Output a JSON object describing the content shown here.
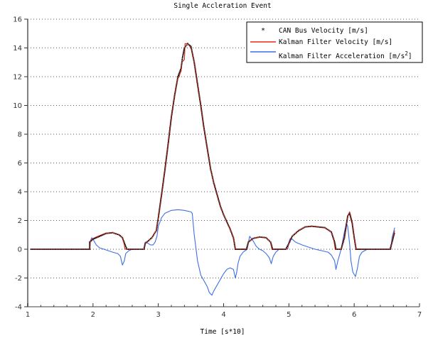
{
  "chart_data": {
    "type": "line",
    "title": "Single Accleration Event",
    "xlabel": "Time [s*10]",
    "ylabel": "",
    "xlim": [
      1,
      7
    ],
    "ylim": [
      -4,
      16
    ],
    "xticks": [
      1,
      2,
      3,
      4,
      5,
      6,
      7
    ],
    "yticks": [
      -4,
      -2,
      0,
      2,
      4,
      6,
      8,
      10,
      12,
      14,
      16
    ],
    "grid": true,
    "grid_style": "dotted horizontal",
    "legend_position": "upper right",
    "colors": {
      "can_bus": "#000000",
      "kalman_velocity": "#e8281c",
      "kalman_accel": "#3d6ee8",
      "axis": "#7f7f7f",
      "grid": "#555555"
    },
    "series": [
      {
        "name": "CAN Bus Velocity [m/s]",
        "style": "markers",
        "marker": "*",
        "color": "#000000",
        "points": [
          [
            1.05,
            0
          ],
          [
            1.2,
            0
          ],
          [
            1.4,
            0
          ],
          [
            1.6,
            0
          ],
          [
            1.8,
            0
          ],
          [
            1.95,
            0
          ],
          [
            1.95,
            0.5
          ],
          [
            2.0,
            0.7
          ],
          [
            2.1,
            0.9
          ],
          [
            2.2,
            1.1
          ],
          [
            2.3,
            1.15
          ],
          [
            2.4,
            1.0
          ],
          [
            2.45,
            0.8
          ],
          [
            2.5,
            0.2
          ],
          [
            2.52,
            0
          ],
          [
            2.6,
            0
          ],
          [
            2.7,
            0
          ],
          [
            2.78,
            0
          ],
          [
            2.8,
            0.4
          ],
          [
            2.9,
            0.8
          ],
          [
            2.97,
            1.3
          ],
          [
            3.0,
            2.2
          ],
          [
            3.05,
            3.8
          ],
          [
            3.1,
            5.5
          ],
          [
            3.15,
            7.3
          ],
          [
            3.2,
            9.2
          ],
          [
            3.25,
            10.7
          ],
          [
            3.3,
            12.0
          ],
          [
            3.35,
            12.6
          ],
          [
            3.37,
            13.3
          ],
          [
            3.4,
            14.0
          ],
          [
            3.45,
            14.3
          ],
          [
            3.5,
            14.1
          ],
          [
            3.55,
            13.0
          ],
          [
            3.6,
            11.5
          ],
          [
            3.65,
            10.0
          ],
          [
            3.7,
            8.4
          ],
          [
            3.75,
            7.0
          ],
          [
            3.8,
            5.6
          ],
          [
            3.85,
            4.6
          ],
          [
            3.9,
            3.8
          ],
          [
            3.95,
            3.0
          ],
          [
            4.0,
            2.4
          ],
          [
            4.05,
            1.9
          ],
          [
            4.1,
            1.4
          ],
          [
            4.15,
            0.8
          ],
          [
            4.18,
            0
          ],
          [
            4.25,
            0
          ],
          [
            4.35,
            0
          ],
          [
            4.38,
            0.5
          ],
          [
            4.45,
            0.75
          ],
          [
            4.55,
            0.85
          ],
          [
            4.65,
            0.8
          ],
          [
            4.72,
            0.5
          ],
          [
            4.75,
            0
          ],
          [
            4.85,
            0
          ],
          [
            4.95,
            0
          ],
          [
            5.0,
            0.4
          ],
          [
            5.05,
            0.9
          ],
          [
            5.15,
            1.3
          ],
          [
            5.25,
            1.55
          ],
          [
            5.35,
            1.6
          ],
          [
            5.45,
            1.55
          ],
          [
            5.55,
            1.5
          ],
          [
            5.65,
            1.2
          ],
          [
            5.7,
            0.5
          ],
          [
            5.72,
            0
          ],
          [
            5.8,
            0
          ],
          [
            5.85,
            0.8
          ],
          [
            5.9,
            2.3
          ],
          [
            5.93,
            2.5
          ],
          [
            5.97,
            1.8
          ],
          [
            6.0,
            0.8
          ],
          [
            6.03,
            0
          ],
          [
            6.1,
            0
          ],
          [
            6.2,
            0
          ],
          [
            6.3,
            0
          ],
          [
            6.4,
            0
          ],
          [
            6.55,
            0
          ],
          [
            6.58,
            0.5
          ],
          [
            6.62,
            1.2
          ]
        ]
      },
      {
        "name": "Kalman Filter Velocity [m/s]",
        "style": "line",
        "color": "#e8281c",
        "points": [
          [
            1.05,
            0
          ],
          [
            1.95,
            0
          ],
          [
            1.96,
            0.6
          ],
          [
            2.0,
            0.75
          ],
          [
            2.1,
            0.95
          ],
          [
            2.2,
            1.12
          ],
          [
            2.3,
            1.15
          ],
          [
            2.4,
            1.0
          ],
          [
            2.45,
            0.8
          ],
          [
            2.48,
            0.3
          ],
          [
            2.49,
            0
          ],
          [
            2.78,
            0
          ],
          [
            2.8,
            0.4
          ],
          [
            2.9,
            0.8
          ],
          [
            2.97,
            1.3
          ],
          [
            3.0,
            2.2
          ],
          [
            3.05,
            3.8
          ],
          [
            3.1,
            5.5
          ],
          [
            3.15,
            7.3
          ],
          [
            3.2,
            9.2
          ],
          [
            3.25,
            10.7
          ],
          [
            3.3,
            11.9
          ],
          [
            3.32,
            12.0
          ],
          [
            3.33,
            12.2
          ],
          [
            3.35,
            12.4
          ],
          [
            3.36,
            13.0
          ],
          [
            3.38,
            13.1
          ],
          [
            3.4,
            13.2
          ],
          [
            3.41,
            14.3
          ],
          [
            3.45,
            14.3
          ],
          [
            3.5,
            14.0
          ],
          [
            3.55,
            13.0
          ],
          [
            3.6,
            11.5
          ],
          [
            3.65,
            10.0
          ],
          [
            3.7,
            8.4
          ],
          [
            3.75,
            7.0
          ],
          [
            3.8,
            5.6
          ],
          [
            3.85,
            4.6
          ],
          [
            3.9,
            3.8
          ],
          [
            3.95,
            3.0
          ],
          [
            4.0,
            2.4
          ],
          [
            4.05,
            1.9
          ],
          [
            4.1,
            1.4
          ],
          [
            4.15,
            0.8
          ],
          [
            4.17,
            0.4
          ],
          [
            4.18,
            0
          ],
          [
            4.36,
            0
          ],
          [
            4.38,
            0.5
          ],
          [
            4.45,
            0.75
          ],
          [
            4.55,
            0.85
          ],
          [
            4.65,
            0.8
          ],
          [
            4.72,
            0.5
          ],
          [
            4.74,
            0
          ],
          [
            4.98,
            0
          ],
          [
            5.0,
            0.4
          ],
          [
            5.05,
            0.9
          ],
          [
            5.15,
            1.3
          ],
          [
            5.25,
            1.55
          ],
          [
            5.35,
            1.6
          ],
          [
            5.45,
            1.55
          ],
          [
            5.55,
            1.5
          ],
          [
            5.65,
            1.2
          ],
          [
            5.69,
            0.6
          ],
          [
            5.71,
            0
          ],
          [
            5.8,
            0
          ],
          [
            5.85,
            0.8
          ],
          [
            5.9,
            2.3
          ],
          [
            5.93,
            2.6
          ],
          [
            5.97,
            1.9
          ],
          [
            6.0,
            0.8
          ],
          [
            6.03,
            0
          ],
          [
            6.56,
            0
          ],
          [
            6.58,
            0.6
          ],
          [
            6.62,
            1.3
          ]
        ]
      },
      {
        "name": "Kalman Filter Acceleration [m/s^2]",
        "style": "line",
        "color": "#3d6ee8",
        "points": [
          [
            1.05,
            0
          ],
          [
            1.95,
            0
          ],
          [
            1.96,
            0.6
          ],
          [
            1.98,
            0.8
          ],
          [
            2.0,
            0.7
          ],
          [
            2.05,
            0.3
          ],
          [
            2.1,
            0.1
          ],
          [
            2.2,
            -0.05
          ],
          [
            2.3,
            -0.2
          ],
          [
            2.38,
            -0.3
          ],
          [
            2.42,
            -0.5
          ],
          [
            2.45,
            -1.1
          ],
          [
            2.48,
            -0.8
          ],
          [
            2.5,
            -0.3
          ],
          [
            2.55,
            -0.1
          ],
          [
            2.6,
            0
          ],
          [
            2.78,
            0
          ],
          [
            2.8,
            0.5
          ],
          [
            2.83,
            0.45
          ],
          [
            2.88,
            0.3
          ],
          [
            2.92,
            0.3
          ],
          [
            2.95,
            0.5
          ],
          [
            2.98,
            0.9
          ],
          [
            3.0,
            1.6
          ],
          [
            3.05,
            2.2
          ],
          [
            3.1,
            2.5
          ],
          [
            3.2,
            2.7
          ],
          [
            3.3,
            2.75
          ],
          [
            3.4,
            2.7
          ],
          [
            3.5,
            2.6
          ],
          [
            3.52,
            2.5
          ],
          [
            3.55,
            1.0
          ],
          [
            3.6,
            -0.8
          ],
          [
            3.65,
            -1.8
          ],
          [
            3.7,
            -2.2
          ],
          [
            3.75,
            -2.6
          ],
          [
            3.78,
            -3.0
          ],
          [
            3.82,
            -3.2
          ],
          [
            3.85,
            -2.9
          ],
          [
            3.9,
            -2.5
          ],
          [
            3.95,
            -2.1
          ],
          [
            4.0,
            -1.7
          ],
          [
            4.05,
            -1.4
          ],
          [
            4.1,
            -1.3
          ],
          [
            4.15,
            -1.4
          ],
          [
            4.18,
            -2.0
          ],
          [
            4.2,
            -1.6
          ],
          [
            4.22,
            -1.0
          ],
          [
            4.25,
            -0.5
          ],
          [
            4.3,
            -0.2
          ],
          [
            4.36,
            0
          ],
          [
            4.38,
            0.5
          ],
          [
            4.4,
            0.9
          ],
          [
            4.45,
            0.6
          ],
          [
            4.5,
            0.2
          ],
          [
            4.55,
            0
          ],
          [
            4.6,
            -0.1
          ],
          [
            4.65,
            -0.3
          ],
          [
            4.7,
            -0.6
          ],
          [
            4.73,
            -1.0
          ],
          [
            4.76,
            -0.5
          ],
          [
            4.8,
            -0.2
          ],
          [
            4.85,
            0
          ],
          [
            4.98,
            0
          ],
          [
            5.0,
            0.5
          ],
          [
            5.02,
            0.75
          ],
          [
            5.05,
            0.7
          ],
          [
            5.1,
            0.5
          ],
          [
            5.2,
            0.3
          ],
          [
            5.3,
            0.15
          ],
          [
            5.4,
            0.0
          ],
          [
            5.5,
            -0.1
          ],
          [
            5.6,
            -0.2
          ],
          [
            5.65,
            -0.4
          ],
          [
            5.7,
            -0.8
          ],
          [
            5.72,
            -1.4
          ],
          [
            5.75,
            -0.8
          ],
          [
            5.8,
            0.0
          ],
          [
            5.85,
            1.2
          ],
          [
            5.88,
            1.8
          ],
          [
            5.9,
            1.6
          ],
          [
            5.93,
            0.4
          ],
          [
            5.95,
            -0.8
          ],
          [
            5.98,
            -1.6
          ],
          [
            6.02,
            -1.9
          ],
          [
            6.05,
            -1.3
          ],
          [
            6.08,
            -0.5
          ],
          [
            6.12,
            -0.2
          ],
          [
            6.2,
            0
          ],
          [
            6.56,
            0
          ],
          [
            6.58,
            0.8
          ],
          [
            6.62,
            1.5
          ]
        ]
      }
    ]
  },
  "legend": {
    "items": [
      {
        "label": "CAN Bus Velocity [m/s]",
        "symbol": "*"
      },
      {
        "label": "Kalman Filter Velocity [m/s]"
      },
      {
        "label": "Kalman Filter Acceleration [m/s",
        "superscript": "2",
        "suffix": "]"
      }
    ]
  }
}
